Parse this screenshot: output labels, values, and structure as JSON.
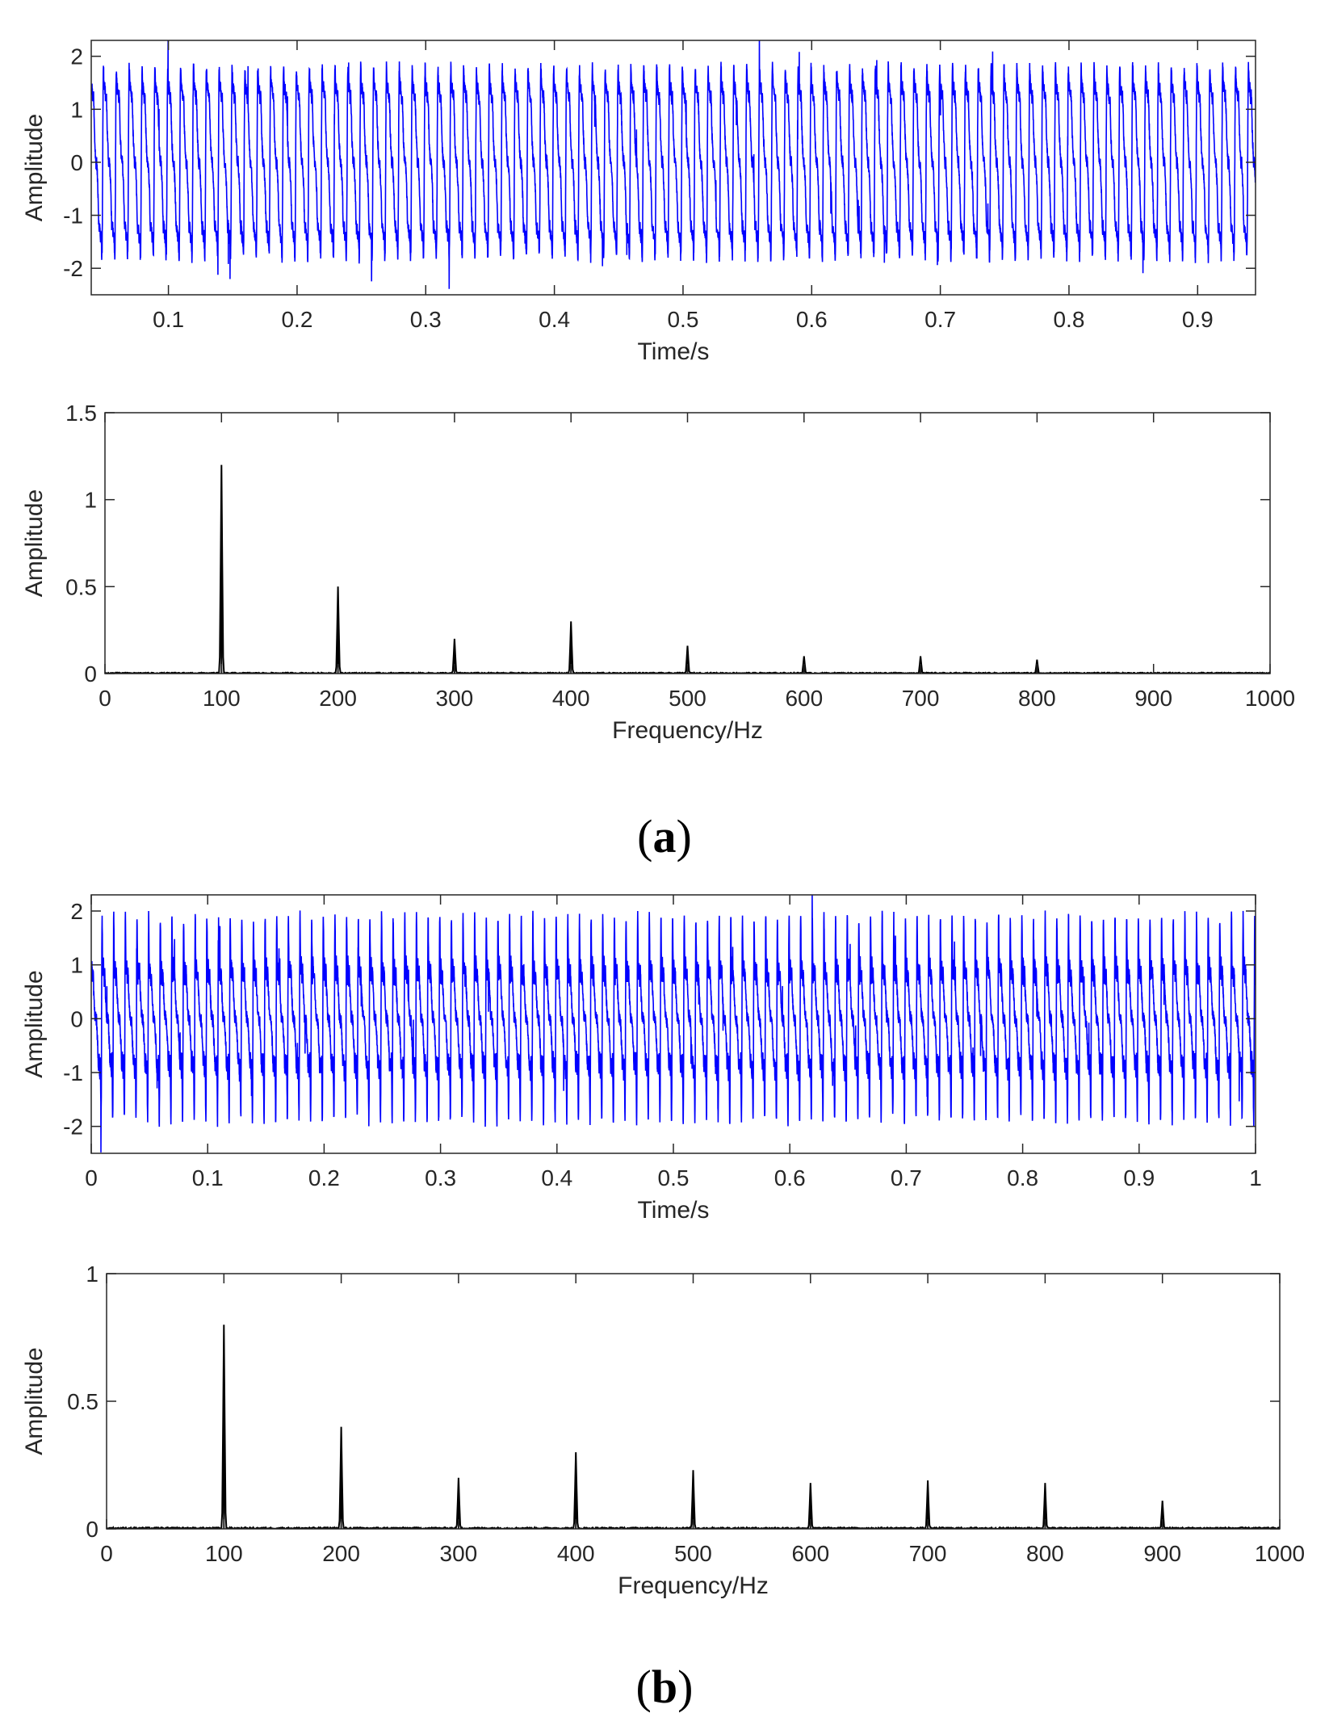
{
  "figure": {
    "panels": [
      {
        "label_open": "(",
        "label_letter": "a",
        "label_close": ")"
      },
      {
        "label_open": "(",
        "label_letter": "b",
        "label_close": ")"
      }
    ]
  },
  "colors": {
    "signal": "#0000ff",
    "spectrum": "#000000",
    "axes": "#262626"
  },
  "chart_data": [
    {
      "id": "a-time",
      "type": "line",
      "xlabel": "Time/s",
      "ylabel": "Amplitude",
      "xlim": [
        0.04,
        0.945
      ],
      "ylim": [
        -2.5,
        2.3
      ],
      "xticks": [
        0.1,
        0.2,
        0.3,
        0.4,
        0.5,
        0.6,
        0.7,
        0.8,
        0.9
      ],
      "xtick_labels": [
        "0.1",
        "0.2",
        "0.3",
        "0.4",
        "0.5",
        "0.6",
        "0.7",
        "0.8",
        "0.9"
      ],
      "yticks": [
        -2,
        -1,
        0,
        1,
        2
      ],
      "ytick_labels": [
        "-2",
        "-1",
        "0",
        "1",
        "2"
      ],
      "series": [
        {
          "color": "#0000ff",
          "signal_model": {
            "fundamental_hz": 100,
            "harmonics": [
              {
                "order": 1,
                "amplitude": 1.2
              },
              {
                "order": 2,
                "amplitude": 0.5
              },
              {
                "order": 3,
                "amplitude": 0.2
              },
              {
                "order": 4,
                "amplitude": 0.3
              },
              {
                "order": 5,
                "amplitude": 0.16
              },
              {
                "order": 6,
                "amplitude": 0.1
              },
              {
                "order": 7,
                "amplitude": 0.1
              },
              {
                "order": 8,
                "amplitude": 0.08
              }
            ],
            "t_start": 0.04,
            "t_end": 0.945
          }
        }
      ]
    },
    {
      "id": "a-spectrum",
      "type": "line",
      "xlabel": "Frequency/Hz",
      "ylabel": "Amplitude",
      "xlim": [
        0,
        1000
      ],
      "ylim": [
        0,
        1.5
      ],
      "xticks": [
        0,
        100,
        200,
        300,
        400,
        500,
        600,
        700,
        800,
        900,
        1000
      ],
      "xtick_labels": [
        "0",
        "100",
        "200",
        "300",
        "400",
        "500",
        "600",
        "700",
        "800",
        "900",
        "1000"
      ],
      "yticks": [
        0,
        0.5,
        1,
        1.5
      ],
      "ytick_labels": [
        "0",
        "0.5",
        "1",
        "1.5"
      ],
      "series": [
        {
          "color": "#000000",
          "peaks": [
            {
              "x": 100,
              "y": 1.2
            },
            {
              "x": 200,
              "y": 0.5
            },
            {
              "x": 300,
              "y": 0.2
            },
            {
              "x": 400,
              "y": 0.3
            },
            {
              "x": 500,
              "y": 0.16
            },
            {
              "x": 600,
              "y": 0.1
            },
            {
              "x": 700,
              "y": 0.1
            },
            {
              "x": 800,
              "y": 0.08
            }
          ]
        }
      ]
    },
    {
      "id": "b-time",
      "type": "line",
      "xlabel": "Time/s",
      "ylabel": "Amplitude",
      "xlim": [
        0,
        1
      ],
      "ylim": [
        -2.5,
        2.3
      ],
      "xticks": [
        0,
        0.1,
        0.2,
        0.3,
        0.4,
        0.5,
        0.6,
        0.7,
        0.8,
        0.9,
        1
      ],
      "xtick_labels": [
        "0",
        "0.1",
        "0.2",
        "0.3",
        "0.4",
        "0.5",
        "0.6",
        "0.7",
        "0.8",
        "0.9",
        "1"
      ],
      "yticks": [
        -2,
        -1,
        0,
        1,
        2
      ],
      "ytick_labels": [
        "-2",
        "-1",
        "0",
        "1",
        "2"
      ],
      "series": [
        {
          "color": "#0000ff",
          "signal_model": {
            "fundamental_hz": 100,
            "harmonics": [
              {
                "order": 1,
                "amplitude": 0.8
              },
              {
                "order": 2,
                "amplitude": 0.4
              },
              {
                "order": 3,
                "amplitude": 0.2
              },
              {
                "order": 4,
                "amplitude": 0.3
              },
              {
                "order": 5,
                "amplitude": 0.23
              },
              {
                "order": 6,
                "amplitude": 0.18
              },
              {
                "order": 7,
                "amplitude": 0.19
              },
              {
                "order": 8,
                "amplitude": 0.18
              },
              {
                "order": 9,
                "amplitude": 0.11
              }
            ],
            "t_start": 0,
            "t_end": 1
          }
        }
      ]
    },
    {
      "id": "b-spectrum",
      "type": "line",
      "xlabel": "Frequency/Hz",
      "ylabel": "Amplitude",
      "xlim": [
        0,
        1000
      ],
      "ylim": [
        0,
        1
      ],
      "xticks": [
        0,
        100,
        200,
        300,
        400,
        500,
        600,
        700,
        800,
        900,
        1000
      ],
      "xtick_labels": [
        "0",
        "100",
        "200",
        "300",
        "400",
        "500",
        "600",
        "700",
        "800",
        "900",
        "1000"
      ],
      "yticks": [
        0,
        0.5,
        1
      ],
      "ytick_labels": [
        "0",
        "0.5",
        "1"
      ],
      "series": [
        {
          "color": "#000000",
          "peaks": [
            {
              "x": 100,
              "y": 0.8
            },
            {
              "x": 200,
              "y": 0.4
            },
            {
              "x": 300,
              "y": 0.2
            },
            {
              "x": 400,
              "y": 0.3
            },
            {
              "x": 500,
              "y": 0.23
            },
            {
              "x": 600,
              "y": 0.18
            },
            {
              "x": 700,
              "y": 0.19
            },
            {
              "x": 800,
              "y": 0.18
            },
            {
              "x": 900,
              "y": 0.11
            }
          ]
        }
      ]
    }
  ]
}
